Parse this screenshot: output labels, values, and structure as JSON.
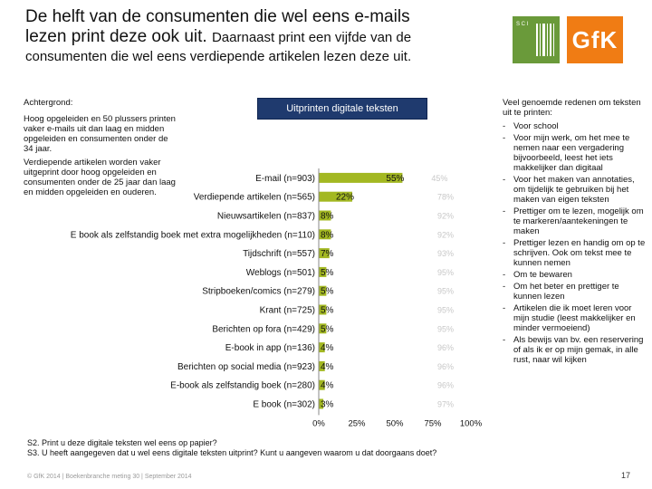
{
  "header": {
    "title_line1": "De helft van de consumenten die wel eens e-mails",
    "title_line2_main": "lezen print deze ook uit.",
    "title_line2_small": "Daarnaast print een vijfde van de",
    "subtitle": "consumenten die wel eens verdiepende artikelen lezen deze uit."
  },
  "logos": {
    "left_logo_text": "S C I",
    "gfk_text": "GfK",
    "left_logo_color": "#6a9a3a",
    "gfk_color": "#f07c14"
  },
  "background": {
    "heading": "Achtergrond:",
    "para1": "Hoog opgeleiden en 50 plussers printen vaker e-mails uit dan laag en midden opgeleiden en consumenten onder de 34 jaar.",
    "para2": "Verdiepende artikelen worden vaker uitgeprint door hoog opgeleiden en consumenten onder de 25 jaar dan laag en midden opgeleiden en ouderen."
  },
  "chart_data": {
    "type": "bar",
    "orientation": "horizontal",
    "title": "Uitprinten digitale teksten",
    "categories": [
      "E-mail (n=903)",
      "Verdiepende artikelen (n=565)",
      "Nieuwsartikelen (n=837)",
      "E book als zelfstandig boek met extra mogelijkheden (n=110)",
      "Tijdschrift (n=557)",
      "Weblogs (n=501)",
      "Stripboeken/comics (n=279)",
      "Krant (n=725)",
      "Berichten op fora (n=429)",
      "E-book in app (n=136)",
      "Berichten op social media (n=923)",
      "E-book als zelfstandig boek (n=280)",
      "E book (n=302)"
    ],
    "values": [
      55,
      22,
      8,
      8,
      7,
      5,
      5,
      5,
      5,
      4,
      4,
      4,
      3
    ],
    "value_labels": [
      "55%",
      "22%",
      "8%",
      "8%",
      "7%",
      "5%",
      "5%",
      "5%",
      "5%",
      "4%",
      "4%",
      "4%",
      "3%"
    ],
    "ghost_labels": [
      "45%",
      "78%",
      "92%",
      "92%",
      "93%",
      "95%",
      "95%",
      "95%",
      "95%",
      "96%",
      "96%",
      "96%",
      "97%"
    ],
    "x_ticks": [
      "0%",
      "25%",
      "50%",
      "75%",
      "100%"
    ],
    "xlim": [
      0,
      100
    ],
    "bar_color": "#a3b822",
    "grid": false
  },
  "reasons": {
    "intro": "Veel genoemde redenen om teksten uit te printen:",
    "items": [
      "Voor school",
      "Voor mijn werk, om het mee te nemen naar een vergadering bijvoorbeeld, leest het iets makkelijker dan digitaal",
      "Voor het maken van annotaties, om tijdelijk te gebruiken bij het maken van eigen teksten",
      "Prettiger om te lezen, mogelijk om te markeren/aantekeningen te maken",
      "Prettiger lezen en handig om op te schrijven. Ook om tekst mee te kunnen nemen",
      "Om te bewaren",
      "Om het beter en prettiger te kunnen lezen",
      "Artikelen die ik moet leren voor mijn studie (leest makkelijker en minder vermoeiend)",
      "Als bewijs van bv. een reservering of als ik er op mijn gemak, in alle rust, naar wil kijken"
    ]
  },
  "questions": {
    "s2": "S2. Print u deze digitale teksten wel eens op papier?",
    "s3": "S3. U heeft aangegeven dat u wel eens digitale teksten uitprint? Kunt u aangeven waarom u dat doorgaans doet?"
  },
  "footer": {
    "text": "© GfK 2014 | Boekenbranche meting 30 | September 2014",
    "page": "17"
  }
}
